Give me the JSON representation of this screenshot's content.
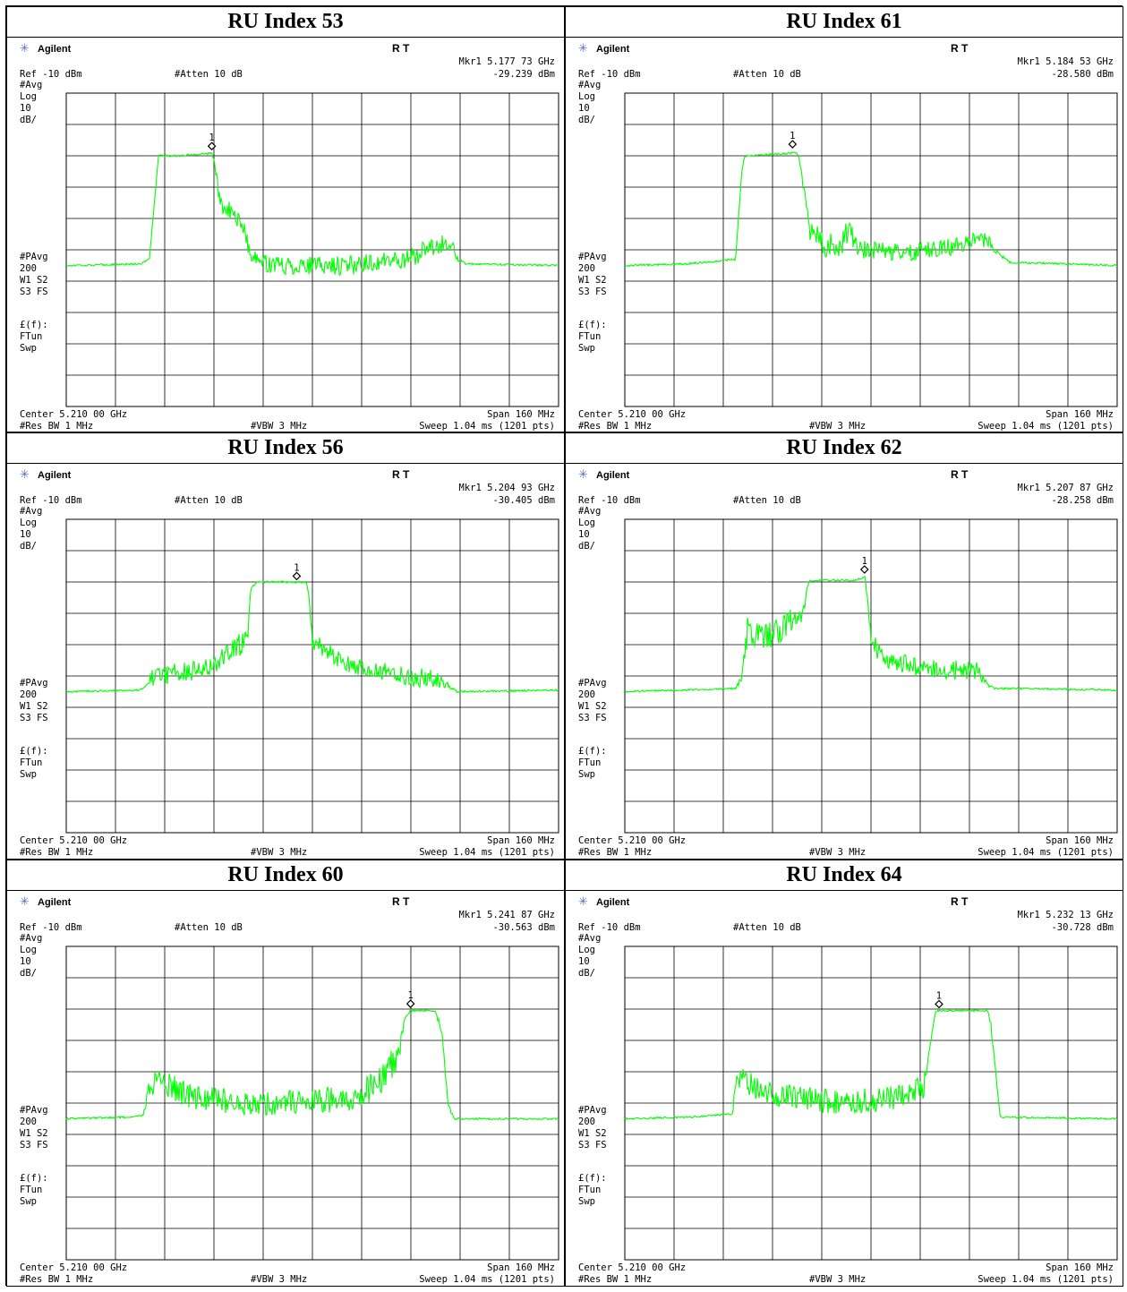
{
  "instrument": {
    "brand": "Agilent",
    "status": "R   T",
    "ref": "Ref -10 dBm",
    "atten": "#Atten 10 dB",
    "side_top": [
      "#Avg",
      "Log",
      "10",
      "dB/"
    ],
    "side_mid": [
      "#PAvg",
      "200",
      "W1  S2",
      "S3  FS"
    ],
    "side_bot": [
      "£(f):",
      "FTun",
      "Swp"
    ],
    "center": "Center 5.210 00 GHz",
    "span": "Span 160 MHz",
    "res_bw": "#Res BW 1 MHz",
    "vbw": "#VBW 3 MHz",
    "sweep": "Sweep 1.04 ms (1201 pts)",
    "trace_color": "#00ff00"
  },
  "chart_data": [
    {
      "type": "line",
      "title": "RU Index 53",
      "marker": {
        "label": "1",
        "freq": "5.177 73 GHz",
        "amp": "-29.239 dBm",
        "x_ghz": 5.1773,
        "y_dbm": -29.2
      },
      "xlim": [
        5.13,
        5.29
      ],
      "ylim": [
        -110,
        -10
      ],
      "series": [
        {
          "x": [
            5.13,
            5.154,
            5.157,
            5.16,
            5.166,
            5.1775,
            5.179,
            5.18,
            5.185,
            5.188,
            5.19,
            5.2,
            5.22,
            5.24,
            5.25,
            5.255,
            5.257,
            5.26,
            5.29
          ],
          "y": [
            -65,
            -64.5,
            -63,
            -30,
            -30,
            -29.2,
            -37,
            -46,
            -49,
            -54,
            -63,
            -65,
            -65,
            -63,
            -59,
            -57,
            -63,
            -64.5,
            -65
          ],
          "noise": [
            0,
            0,
            0,
            0,
            0,
            0,
            2,
            3,
            3,
            2,
            3,
            3,
            3,
            3,
            3,
            3,
            1,
            0,
            0
          ]
        }
      ]
    },
    {
      "type": "line",
      "title": "RU Index 61",
      "marker": {
        "label": "1",
        "freq": "5.184 53 GHz",
        "amp": "-28.580 dBm",
        "x_ghz": 5.1845,
        "y_dbm": -28.6
      },
      "xlim": [
        5.13,
        5.29
      ],
      "ylim": [
        -110,
        -10
      ],
      "series": [
        {
          "x": [
            5.13,
            5.15,
            5.166,
            5.168,
            5.169,
            5.186,
            5.187,
            5.19,
            5.194,
            5.2,
            5.203,
            5.206,
            5.208,
            5.225,
            5.24,
            5.248,
            5.25,
            5.255,
            5.29
          ],
          "y": [
            -65,
            -64.5,
            -63,
            -35,
            -30,
            -29,
            -33,
            -53,
            -58,
            -59,
            -52,
            -60,
            -60,
            -61,
            -58,
            -56,
            -60,
            -64,
            -65
          ],
          "noise": [
            0,
            0,
            0,
            0,
            0,
            0,
            2,
            4,
            4,
            4,
            5,
            3,
            3,
            3,
            3,
            3,
            1,
            0,
            0
          ]
        }
      ]
    },
    {
      "type": "line",
      "title": "RU Index 56",
      "marker": {
        "label": "1",
        "freq": "5.204 93 GHz",
        "amp": "-30.405 dBm",
        "x_ghz": 5.2049,
        "y_dbm": -30.4
      },
      "xlim": [
        5.13,
        5.29
      ],
      "ylim": [
        -110,
        -10
      ],
      "series": [
        {
          "x": [
            5.13,
            5.154,
            5.156,
            5.158,
            5.175,
            5.186,
            5.189,
            5.19,
            5.192,
            5.208,
            5.209,
            5.21,
            5.213,
            5.22,
            5.24,
            5.252,
            5.254,
            5.257,
            5.29
          ],
          "y": [
            -65,
            -64.5,
            -63,
            -60,
            -58,
            -51,
            -46,
            -32,
            -30,
            -30,
            -36,
            -48,
            -51,
            -56,
            -60,
            -61,
            -63,
            -65,
            -64.5
          ],
          "noise": [
            0,
            0,
            0,
            3,
            3,
            4,
            3,
            0,
            0,
            0,
            2,
            3,
            3,
            3,
            3,
            3,
            1,
            0,
            0
          ]
        }
      ]
    },
    {
      "type": "line",
      "title": "RU Index 62",
      "marker": {
        "label": "1",
        "freq": "5.207 87 GHz",
        "amp": "-28.258 dBm",
        "x_ghz": 5.2079,
        "y_dbm": -28.3
      },
      "xlim": [
        5.13,
        5.29
      ],
      "ylim": [
        -110,
        -10
      ],
      "series": [
        {
          "x": [
            5.13,
            5.166,
            5.168,
            5.17,
            5.175,
            5.18,
            5.188,
            5.189,
            5.19,
            5.205,
            5.208,
            5.209,
            5.21,
            5.215,
            5.23,
            5.245,
            5.247,
            5.25,
            5.26,
            5.29
          ],
          "y": [
            -65,
            -64,
            -60,
            -45,
            -49,
            -45,
            -40,
            -33,
            -29.5,
            -29.5,
            -28.3,
            -36,
            -49,
            -55,
            -58,
            -58,
            -62,
            -64,
            -64,
            -64.5
          ],
          "noise": [
            0,
            0,
            2,
            5,
            5,
            5,
            3,
            0,
            0,
            0,
            0,
            2,
            3,
            3,
            3,
            3,
            1,
            0,
            0,
            0
          ]
        }
      ]
    },
    {
      "type": "line",
      "title": "RU Index 60",
      "marker": {
        "label": "1",
        "freq": "5.241 87 GHz",
        "amp": "-30.563 dBm",
        "x_ghz": 5.2419,
        "y_dbm": -30.6
      },
      "xlim": [
        5.13,
        5.29
      ],
      "ylim": [
        -110,
        -10
      ],
      "series": [
        {
          "x": [
            5.13,
            5.15,
            5.155,
            5.157,
            5.16,
            5.17,
            5.19,
            5.2,
            5.225,
            5.232,
            5.235,
            5.238,
            5.24,
            5.242,
            5.25,
            5.252,
            5.254,
            5.256,
            5.29
          ],
          "y": [
            -65,
            -64.5,
            -64,
            -55,
            -53,
            -58,
            -60,
            -60,
            -58,
            -52,
            -48,
            -45,
            -33,
            -30.5,
            -30.5,
            -37,
            -60,
            -65,
            -65
          ],
          "noise": [
            0,
            0,
            0,
            3,
            4,
            4,
            4,
            4,
            4,
            5,
            5,
            4,
            0,
            0,
            0,
            2,
            1,
            0,
            0
          ]
        }
      ]
    },
    {
      "type": "line",
      "title": "RU Index 64",
      "marker": {
        "label": "1",
        "freq": "5.232 13 GHz",
        "amp": "-30.728 dBm",
        "x_ghz": 5.2321,
        "y_dbm": -30.7
      },
      "xlim": [
        5.13,
        5.29
      ],
      "ylim": [
        -110,
        -10
      ],
      "series": [
        {
          "x": [
            5.13,
            5.15,
            5.165,
            5.166,
            5.168,
            5.175,
            5.2,
            5.22,
            5.227,
            5.229,
            5.231,
            5.248,
            5.249,
            5.252,
            5.29
          ],
          "y": [
            -65,
            -64.5,
            -63.5,
            -54,
            -52,
            -57,
            -60,
            -58,
            -55,
            -43,
            -30.5,
            -30.5,
            -36,
            -64.5,
            -65
          ],
          "noise": [
            0,
            0,
            0,
            3,
            4,
            4,
            4,
            4,
            4,
            0,
            0,
            0,
            2,
            0,
            0
          ]
        }
      ]
    }
  ]
}
